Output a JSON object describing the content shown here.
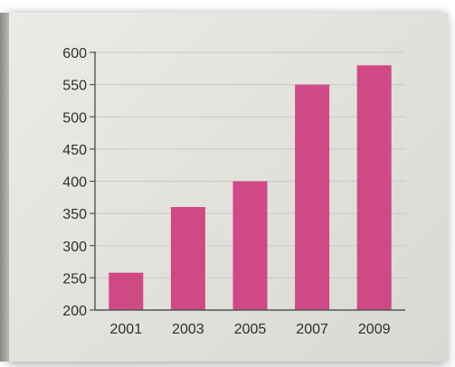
{
  "chart_data": {
    "type": "bar",
    "categories": [
      "2001",
      "2003",
      "2005",
      "2007",
      "2009"
    ],
    "values": [
      258,
      360,
      400,
      550,
      580
    ],
    "title": "",
    "xlabel": "",
    "ylabel": "",
    "ylim": [
      200,
      600
    ],
    "yticks": [
      "200",
      "250",
      "300",
      "350",
      "400",
      "450",
      "500",
      "550",
      "600"
    ],
    "grid": true,
    "bar_color": "#cf4a84",
    "grid_color": "#c9c9c6",
    "axis_color": "#555555"
  }
}
